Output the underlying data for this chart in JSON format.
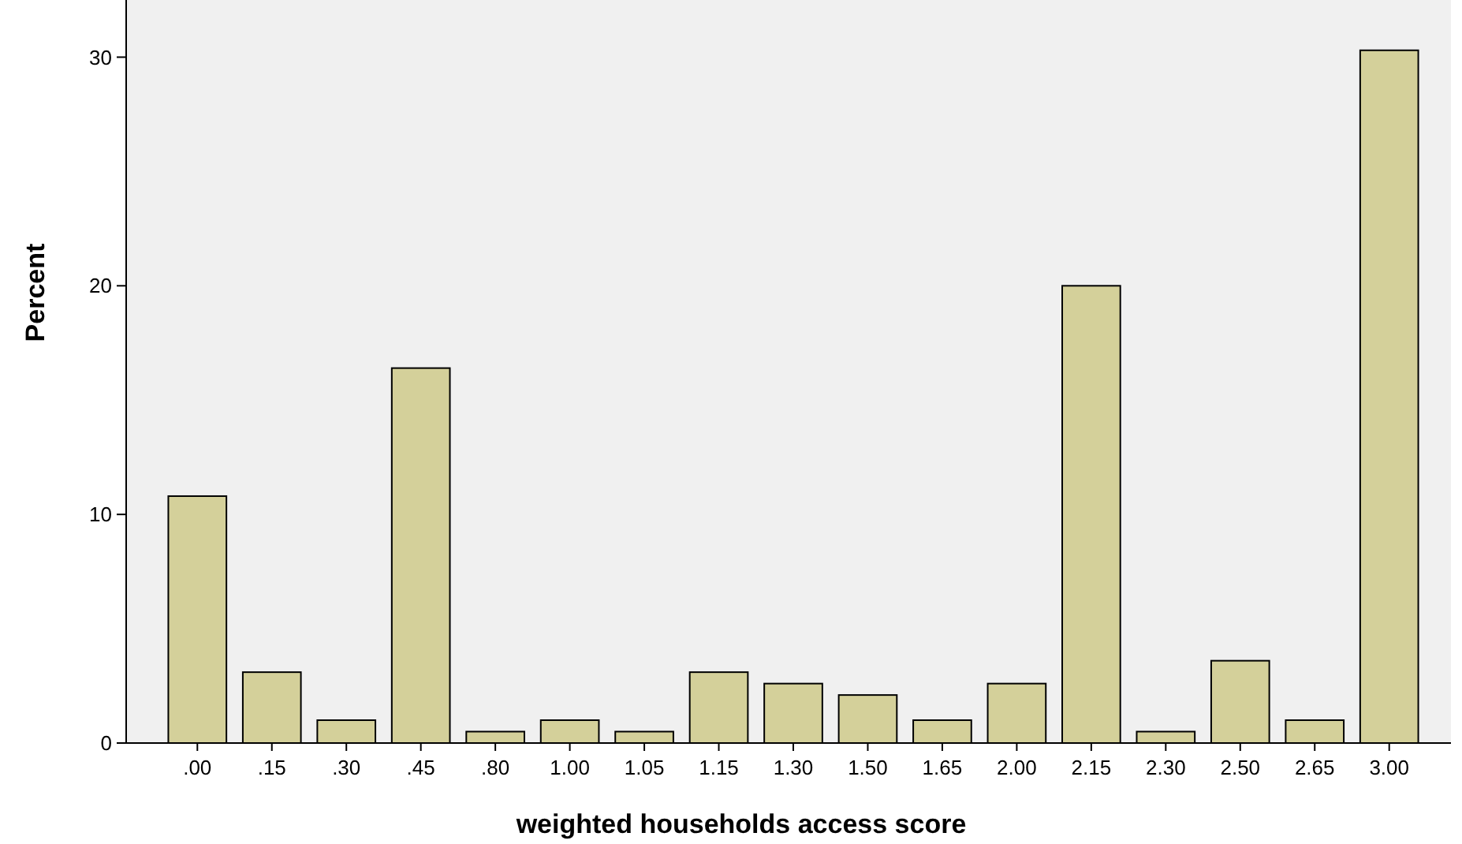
{
  "chart_data": {
    "type": "bar",
    "xlabel": "weighted households access score",
    "ylabel": "Percent",
    "categories": [
      ".00",
      ".15",
      ".30",
      ".45",
      ".80",
      "1.00",
      "1.05",
      "1.15",
      "1.30",
      "1.50",
      "1.65",
      "2.00",
      "2.15",
      "2.30",
      "2.50",
      "2.65",
      "3.00"
    ],
    "values": [
      10.8,
      3.1,
      1.0,
      16.4,
      0.5,
      1.0,
      0.5,
      3.1,
      2.6,
      2.1,
      1.0,
      2.6,
      20.0,
      0.5,
      3.6,
      1.0,
      30.3
    ],
    "color": "#d4d09a",
    "ylim": [
      0,
      32.5
    ],
    "yticks": [
      0,
      10,
      20,
      30
    ],
    "grid": false
  }
}
